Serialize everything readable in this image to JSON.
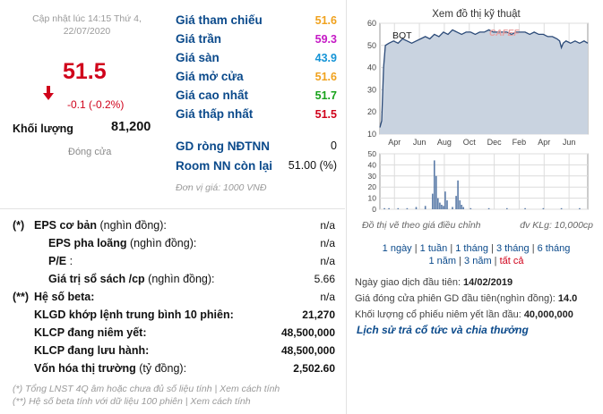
{
  "quote": {
    "updated_line1": "Cập nhật lúc 14:15 Thứ 4,",
    "updated_line2": "22/07/2020",
    "price": "51.5",
    "change": "-0.1 (-0.2%)",
    "volume_label": "Khối lượng",
    "volume_value": "81,200",
    "status": "Đóng cửa",
    "colors": {
      "down": "#d0021b",
      "ref": "#f5a623",
      "ceiling": "#c000c0",
      "floor": "#00a0e0",
      "up": "#1a9e1a",
      "label": "#0b4a8b"
    }
  },
  "reference_table": [
    {
      "label": "Giá tham chiếu",
      "value": "51.6",
      "color": "#f0a21e"
    },
    {
      "label": "Giá trần",
      "value": "59.3",
      "color": "#c519c5"
    },
    {
      "label": "Giá sàn",
      "value": "43.9",
      "color": "#1594d6"
    },
    {
      "label": "Giá mở cửa",
      "value": "51.6",
      "color": "#f0a21e"
    },
    {
      "label": "Giá cao nhất",
      "value": "51.7",
      "color": "#17a21a"
    },
    {
      "label": "Giá thấp nhất",
      "value": "51.5",
      "color": "#d0021b"
    }
  ],
  "foreign": {
    "net_label": "GD ròng NĐTNN",
    "net_value": "0",
    "room_label": "Room NN còn lại",
    "room_value": "51.00 (%)",
    "unit_note": "Đơn vị giá: 1000 VNĐ"
  },
  "fundamentals": [
    {
      "prefix": "(*)",
      "label": "EPS cơ bản",
      "sub": " (nghìn đồng):",
      "value": "n/a",
      "indent": 0
    },
    {
      "prefix": "",
      "label": "EPS pha loãng",
      "sub": " (nghìn đồng):",
      "value": "n/a",
      "indent": 1
    },
    {
      "prefix": "",
      "label": "P/E",
      "sub": " :",
      "value": "n/a",
      "indent": 1
    },
    {
      "prefix": "",
      "label": "Giá trị sổ sách /cp",
      "sub": " (nghìn đồng):",
      "value": "5.66",
      "indent": 1
    },
    {
      "prefix": "(**)",
      "label": "Hệ số beta:",
      "sub": "",
      "value": "n/a",
      "indent": 0
    },
    {
      "prefix": "",
      "label": "KLGD khớp lệnh trung bình 10 phiên:",
      "sub": "",
      "value": "21,270",
      "indent": 0
    },
    {
      "prefix": "",
      "label": "KLCP đang niêm yết:",
      "sub": "",
      "value": "48,500,000",
      "indent": 0
    },
    {
      "prefix": "",
      "label": "KLCP đang lưu hành:",
      "sub": "",
      "value": "48,500,000",
      "indent": 0
    },
    {
      "prefix": "",
      "label": "Vốn hóa thị trường",
      "sub": " (tỷ đồng):",
      "value": "2,502.60",
      "indent": 0
    }
  ],
  "notes": {
    "note1": "(*) Tổng LNST 4Q âm hoặc chưa đủ số liệu tính | Xem cách tính",
    "note2": "(**) Hệ số beta tính với dữ liệu 100 phiên | Xem cách tính"
  },
  "chart": {
    "title": "Xem đồ thị kỹ thuật",
    "ticker": "BOT",
    "watermark": "CAFEF",
    "caption_left": "Đồ thị vẽ theo giá điều chỉnh",
    "caption_right": "đv KLg: 10,000cp"
  },
  "chart_data": [
    {
      "type": "area",
      "title": "Xem đồ thị kỹ thuật",
      "x_ticks": [
        "Apr",
        "Jun",
        "Aug",
        "Oct",
        "Dec",
        "Feb",
        "Apr",
        "Jun"
      ],
      "y_ticks": [
        10,
        20,
        30,
        40,
        50,
        60
      ],
      "ylim": [
        10,
        60
      ],
      "x": [
        0,
        2,
        4,
        6,
        10,
        15,
        20,
        25,
        30,
        35,
        40,
        45,
        50,
        55,
        60,
        65,
        70,
        75,
        80,
        85,
        90,
        95,
        100,
        105,
        110,
        115,
        120,
        125,
        130,
        135,
        140,
        145,
        150,
        155,
        160,
        165,
        170,
        175,
        180,
        185,
        190,
        195,
        198,
        200,
        202,
        205,
        210,
        215,
        220,
        225,
        229
      ],
      "y": [
        13,
        16,
        40,
        50,
        51,
        52,
        51,
        53,
        52,
        51,
        52,
        53,
        54,
        53,
        55,
        54,
        56,
        55,
        57,
        56,
        55,
        56,
        56,
        55,
        56,
        56,
        57,
        56,
        56,
        56,
        56,
        55,
        56,
        56,
        56,
        55,
        56,
        55,
        55,
        54,
        54,
        53,
        52,
        49,
        51,
        52,
        51,
        52,
        51,
        52,
        51
      ],
      "grid": true
    },
    {
      "type": "bar",
      "title": "",
      "y_ticks": [
        0,
        10,
        20,
        30,
        40,
        50
      ],
      "ylim": [
        0,
        50
      ],
      "x": [
        5,
        10,
        20,
        30,
        40,
        50,
        58,
        60,
        62,
        64,
        66,
        68,
        70,
        72,
        74,
        80,
        84,
        86,
        88,
        90,
        92,
        100,
        120,
        140,
        160,
        180,
        200,
        220
      ],
      "values": [
        1,
        1,
        1,
        1,
        2,
        3,
        14,
        44,
        30,
        10,
        6,
        4,
        3,
        16,
        8,
        2,
        12,
        26,
        8,
        4,
        2,
        1,
        1,
        1,
        1,
        1,
        1,
        1
      ],
      "grid": true
    }
  ],
  "periods": {
    "items": [
      "1 ngày",
      "1 tuần",
      "1 tháng",
      "3 tháng",
      "6 tháng",
      "1 năm",
      "3 năm",
      "tất cả"
    ]
  },
  "listing": {
    "first_trade_label": "Ngày giao dịch đầu tiên:",
    "first_trade_value": "14/02/2019",
    "first_price_label": "Giá đóng cửa phiên GD đầu tiên(nghìn đồng):",
    "first_price_value": "14.0",
    "first_volume_label": "Khối lượng cổ phiếu niêm yết lần đầu:",
    "first_volume_value": "40,000,000",
    "history_link": "Lịch sử trả cổ tức và chia thưởng"
  }
}
